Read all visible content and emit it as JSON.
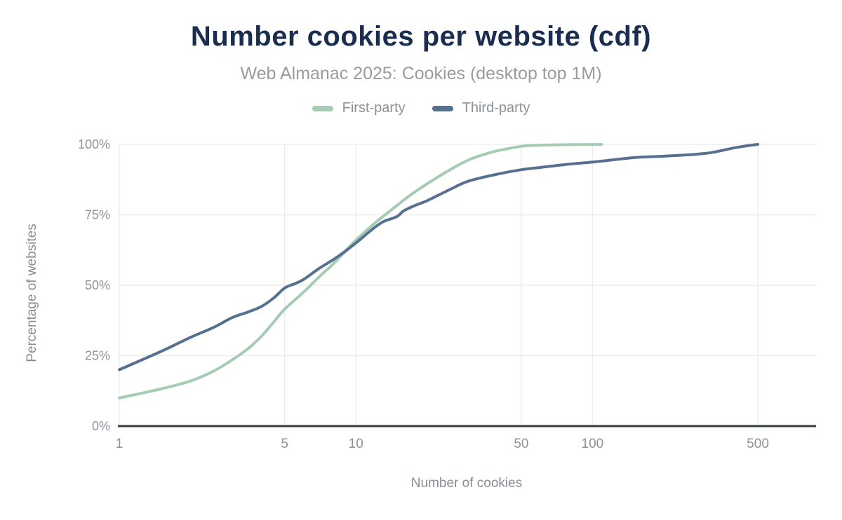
{
  "header": {
    "title": "Number cookies per website (cdf)",
    "subtitle": "Web Almanac 2025: Cookies (desktop top 1M)"
  },
  "legend": {
    "items": [
      {
        "label": "First-party",
        "color": "#a5ccb3"
      },
      {
        "label": "Third-party",
        "color": "#56708f"
      }
    ]
  },
  "colors": {
    "title": "#1b2d4f",
    "subtitle": "#9b9b9b",
    "tick_label": "#8d939a",
    "axis_title": "#878e95",
    "gridline": "#ededed",
    "axis_line": "#363b41",
    "first_party": "#a5ccb3",
    "third_party": "#56708f",
    "background": "#ffffff"
  },
  "chart_data": {
    "type": "line",
    "title": "Number cookies per website (cdf)",
    "subtitle": "Web Almanac 2025: Cookies (desktop top 1M)",
    "xlabel": "Number of cookies",
    "ylabel": "Percentage of websites",
    "x_scale": "log",
    "grid": true,
    "legend_position": "top",
    "xlim": [
      1,
      870
    ],
    "ylim": [
      0,
      100
    ],
    "x_ticks": [
      {
        "value": 1,
        "label": "1"
      },
      {
        "value": 5,
        "label": "5"
      },
      {
        "value": 10,
        "label": "10"
      },
      {
        "value": 50,
        "label": "50"
      },
      {
        "value": 100,
        "label": "100"
      },
      {
        "value": 500,
        "label": "500"
      }
    ],
    "y_ticks": [
      {
        "value": 0,
        "label": "0%"
      },
      {
        "value": 25,
        "label": "25%"
      },
      {
        "value": 50,
        "label": "50%"
      },
      {
        "value": 75,
        "label": "75%"
      },
      {
        "value": 100,
        "label": "100%"
      }
    ],
    "series": [
      {
        "name": "First-party",
        "color": "#a5ccb3",
        "points": [
          [
            1,
            10
          ],
          [
            1.5,
            13.2
          ],
          [
            2,
            16
          ],
          [
            2.5,
            19.5
          ],
          [
            3,
            23.5
          ],
          [
            3.5,
            27.5
          ],
          [
            4,
            32
          ],
          [
            4.5,
            37
          ],
          [
            5,
            41.5
          ],
          [
            6,
            47.5
          ],
          [
            7,
            53
          ],
          [
            8,
            57.5
          ],
          [
            9,
            62
          ],
          [
            10,
            66
          ],
          [
            12,
            72
          ],
          [
            14,
            76.5
          ],
          [
            15,
            78.5
          ],
          [
            17,
            82
          ],
          [
            20,
            86
          ],
          [
            25,
            91
          ],
          [
            30,
            94.5
          ],
          [
            35,
            96.5
          ],
          [
            40,
            97.8
          ],
          [
            50,
            99.3
          ],
          [
            60,
            99.7
          ],
          [
            80,
            99.9
          ],
          [
            100,
            99.95
          ],
          [
            109,
            100
          ]
        ]
      },
      {
        "name": "Third-party",
        "color": "#56708f",
        "points": [
          [
            1,
            20
          ],
          [
            1.5,
            26.5
          ],
          [
            2,
            31.5
          ],
          [
            2.5,
            35
          ],
          [
            3,
            38.5
          ],
          [
            3.5,
            40.5
          ],
          [
            4,
            42.5
          ],
          [
            4.5,
            45.5
          ],
          [
            5,
            49
          ],
          [
            5.5,
            50.5
          ],
          [
            6,
            52
          ],
          [
            7,
            56
          ],
          [
            8,
            59
          ],
          [
            9,
            62
          ],
          [
            10,
            65
          ],
          [
            12,
            70.5
          ],
          [
            13,
            72.5
          ],
          [
            14,
            73.5
          ],
          [
            15,
            74.5
          ],
          [
            16,
            76.5
          ],
          [
            18,
            78.5
          ],
          [
            20,
            80
          ],
          [
            25,
            84
          ],
          [
            30,
            87
          ],
          [
            40,
            89.5
          ],
          [
            50,
            91
          ],
          [
            60,
            91.8
          ],
          [
            80,
            93
          ],
          [
            100,
            93.7
          ],
          [
            150,
            95.3
          ],
          [
            200,
            95.8
          ],
          [
            300,
            96.8
          ],
          [
            400,
            98.8
          ],
          [
            450,
            99.5
          ],
          [
            500,
            100
          ]
        ]
      }
    ]
  }
}
